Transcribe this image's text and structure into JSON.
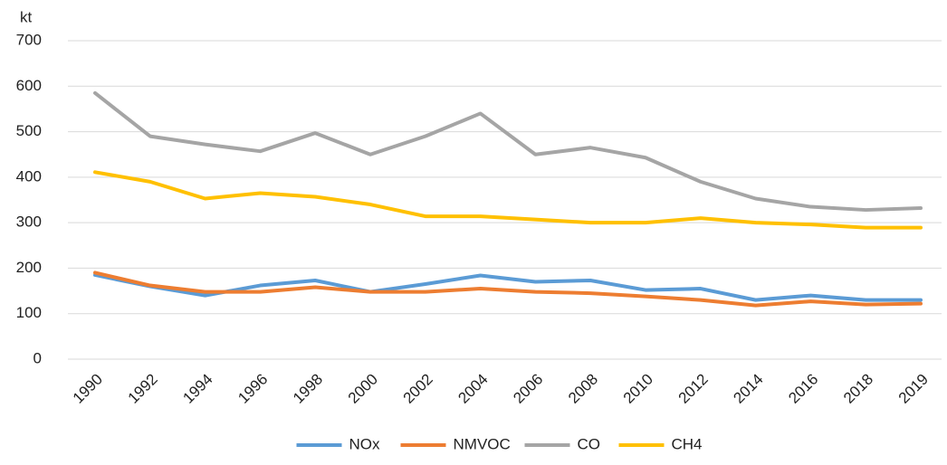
{
  "chart_data": {
    "type": "line",
    "y_label": "kt",
    "categories": [
      "1990",
      "1992",
      "1994",
      "1996",
      "1998",
      "2000",
      "2002",
      "2004",
      "2006",
      "2008",
      "2010",
      "2012",
      "2014",
      "2016",
      "2018",
      "2019"
    ],
    "series": [
      {
        "name": "NOx",
        "color": "#5b9bd5",
        "values": [
          185,
          160,
          140,
          162,
          173,
          148,
          165,
          184,
          170,
          173,
          152,
          155,
          130,
          140,
          130,
          130
        ]
      },
      {
        "name": "NMVOC",
        "color": "#ed7d31",
        "values": [
          190,
          162,
          148,
          148,
          158,
          148,
          148,
          155,
          148,
          145,
          138,
          130,
          118,
          127,
          120,
          122
        ]
      },
      {
        "name": "CO",
        "color": "#a5a5a5",
        "values": [
          585,
          490,
          472,
          457,
          497,
          450,
          490,
          540,
          450,
          465,
          443,
          390,
          353,
          335,
          328,
          332
        ]
      },
      {
        "name": "CH4",
        "color": "#ffc000",
        "values": [
          411,
          390,
          353,
          365,
          357,
          340,
          314,
          314,
          307,
          300,
          300,
          310,
          300,
          296,
          289,
          289
        ]
      }
    ],
    "ylim": [
      0,
      700
    ],
    "yticks": [
      0,
      100,
      200,
      300,
      400,
      500,
      600,
      700
    ],
    "grid": true,
    "legend": "bottom"
  }
}
